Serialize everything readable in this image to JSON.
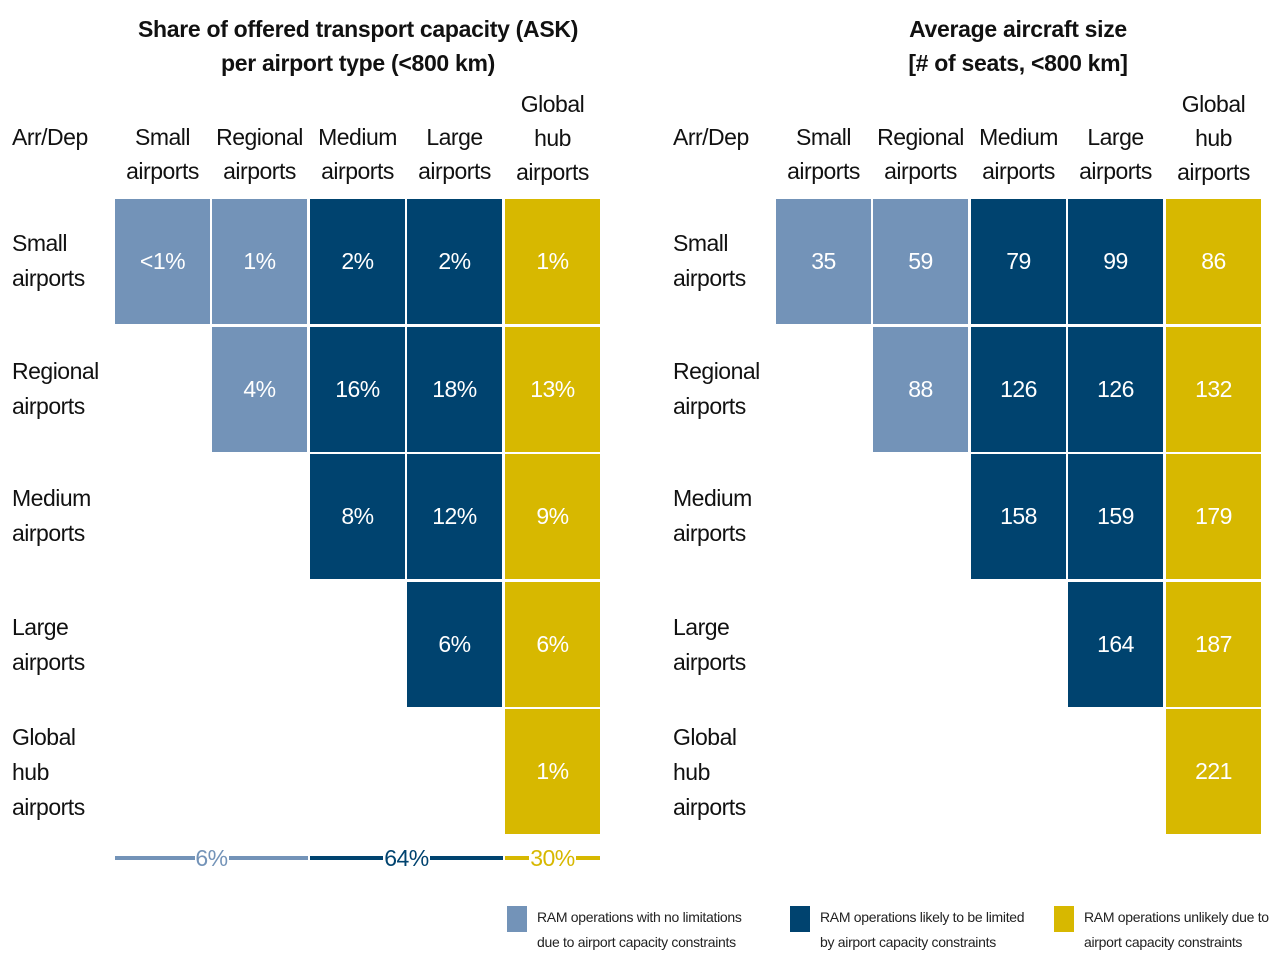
{
  "colors": {
    "no_limit": "#7393b8",
    "limited": "#00436f",
    "unlikely": "#d7b800"
  },
  "chart_data": [
    {
      "type": "heatmap",
      "title": "Share of offered transport capacity (ASK)",
      "subtitle": "per airport type (<800 km)",
      "corner_label": "Arr/Dep",
      "columns": [
        "Small airports",
        "Regional airports",
        "Medium airports",
        "Large airports",
        "Global hub airports"
      ],
      "rows": [
        "Small airports",
        "Regional airports",
        "Medium airports",
        "Large airports",
        "Global hub airports"
      ],
      "cells": [
        {
          "row": 0,
          "col": 0,
          "label": "<1%",
          "category": "no_limit"
        },
        {
          "row": 0,
          "col": 1,
          "label": "1%",
          "category": "no_limit"
        },
        {
          "row": 0,
          "col": 2,
          "label": "2%",
          "category": "limited"
        },
        {
          "row": 0,
          "col": 3,
          "label": "2%",
          "category": "limited"
        },
        {
          "row": 0,
          "col": 4,
          "label": "1%",
          "category": "unlikely"
        },
        {
          "row": 1,
          "col": 1,
          "label": "4%",
          "category": "no_limit"
        },
        {
          "row": 1,
          "col": 2,
          "label": "16%",
          "category": "limited"
        },
        {
          "row": 1,
          "col": 3,
          "label": "18%",
          "category": "limited"
        },
        {
          "row": 1,
          "col": 4,
          "label": "13%",
          "category": "unlikely"
        },
        {
          "row": 2,
          "col": 2,
          "label": "8%",
          "category": "limited"
        },
        {
          "row": 2,
          "col": 3,
          "label": "12%",
          "category": "limited"
        },
        {
          "row": 2,
          "col": 4,
          "label": "9%",
          "category": "unlikely"
        },
        {
          "row": 3,
          "col": 3,
          "label": "6%",
          "category": "limited"
        },
        {
          "row": 3,
          "col": 4,
          "label": "6%",
          "category": "unlikely"
        },
        {
          "row": 4,
          "col": 4,
          "label": "1%",
          "category": "unlikely"
        }
      ],
      "summary": [
        {
          "label": "6%",
          "category": "no_limit"
        },
        {
          "label": "64%",
          "category": "limited"
        },
        {
          "label": "30%",
          "category": "unlikely"
        }
      ]
    },
    {
      "type": "heatmap",
      "title": "Average aircraft size",
      "subtitle": "[# of seats, <800 km]",
      "corner_label": "Arr/Dep",
      "columns": [
        "Small airports",
        "Regional airports",
        "Medium airports",
        "Large airports",
        "Global hub airports"
      ],
      "rows": [
        "Small airports",
        "Regional airports",
        "Medium airports",
        "Large airports",
        "Global hub airports"
      ],
      "cells": [
        {
          "row": 0,
          "col": 0,
          "label": "35",
          "category": "no_limit"
        },
        {
          "row": 0,
          "col": 1,
          "label": "59",
          "category": "no_limit"
        },
        {
          "row": 0,
          "col": 2,
          "label": "79",
          "category": "limited"
        },
        {
          "row": 0,
          "col": 3,
          "label": "99",
          "category": "limited"
        },
        {
          "row": 0,
          "col": 4,
          "label": "86",
          "category": "unlikely"
        },
        {
          "row": 1,
          "col": 1,
          "label": "88",
          "category": "no_limit"
        },
        {
          "row": 1,
          "col": 2,
          "label": "126",
          "category": "limited"
        },
        {
          "row": 1,
          "col": 3,
          "label": "126",
          "category": "limited"
        },
        {
          "row": 1,
          "col": 4,
          "label": "132",
          "category": "unlikely"
        },
        {
          "row": 2,
          "col": 2,
          "label": "158",
          "category": "limited"
        },
        {
          "row": 2,
          "col": 3,
          "label": "159",
          "category": "limited"
        },
        {
          "row": 2,
          "col": 4,
          "label": "179",
          "category": "unlikely"
        },
        {
          "row": 3,
          "col": 3,
          "label": "164",
          "category": "limited"
        },
        {
          "row": 3,
          "col": 4,
          "label": "187",
          "category": "unlikely"
        },
        {
          "row": 4,
          "col": 4,
          "label": "221",
          "category": "unlikely"
        }
      ]
    }
  ],
  "legend": [
    {
      "category": "no_limit",
      "line1": "RAM operations with no limitations",
      "line2": "due to airport capacity constraints"
    },
    {
      "category": "limited",
      "line1": "RAM operations likely to be limited",
      "line2": "by airport capacity constraints"
    },
    {
      "category": "unlikely",
      "line1": "RAM operations unlikely due to",
      "line2": "airport capacity constraints"
    }
  ]
}
